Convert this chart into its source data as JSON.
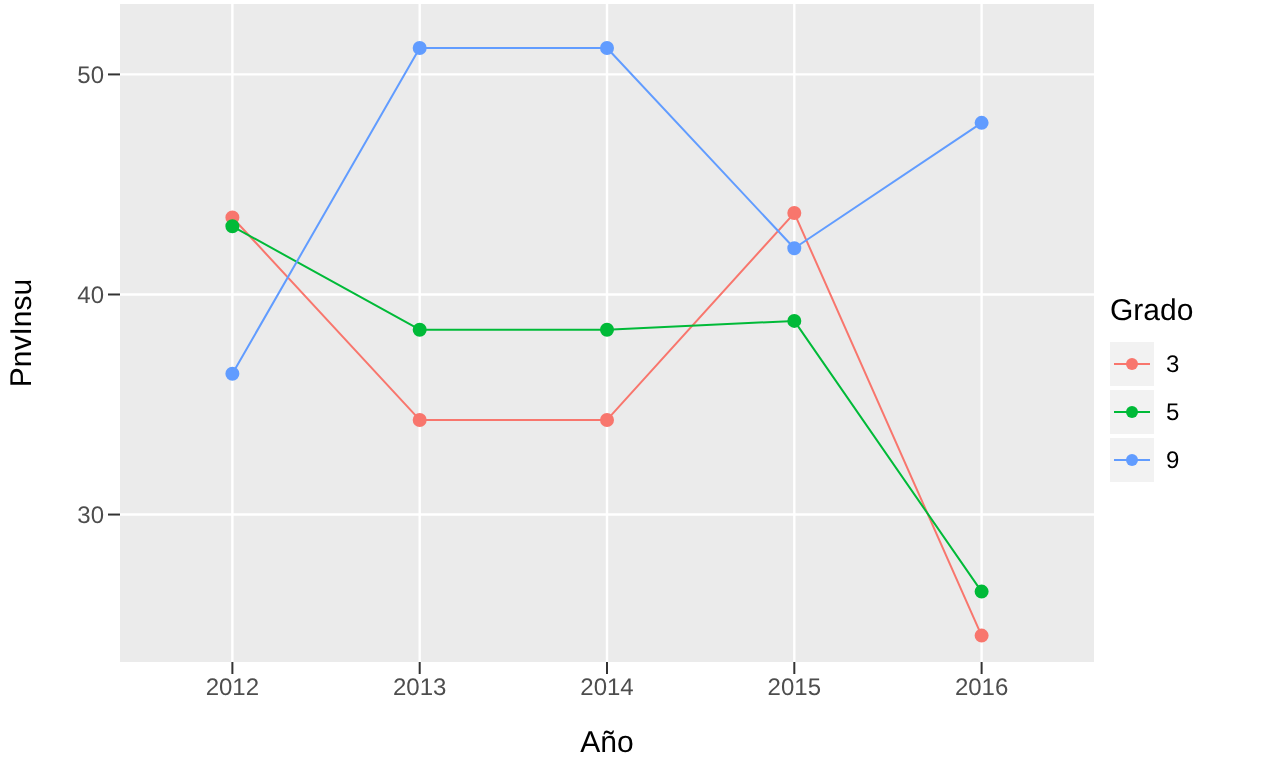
{
  "chart_data": {
    "type": "line",
    "xlabel": "Año",
    "ylabel": "PnvInsu",
    "legend_title": "Grado",
    "categories": [
      "2012",
      "2013",
      "2014",
      "2015",
      "2016"
    ],
    "series": [
      {
        "name": "3",
        "color": "#f8766d",
        "values": [
          43.5,
          34.3,
          34.3,
          43.7,
          24.5
        ]
      },
      {
        "name": "5",
        "color": "#00ba38",
        "values": [
          43.1,
          38.4,
          38.4,
          38.8,
          26.5
        ]
      },
      {
        "name": "9",
        "color": "#619cff",
        "values": [
          36.4,
          51.2,
          51.2,
          42.1,
          47.8
        ]
      }
    ],
    "ylim": [
      23.3,
      53.2
    ],
    "yticks": [
      30,
      40,
      50
    ],
    "grid": true,
    "legend": "right",
    "marker": "circle",
    "line_style": "solid"
  }
}
